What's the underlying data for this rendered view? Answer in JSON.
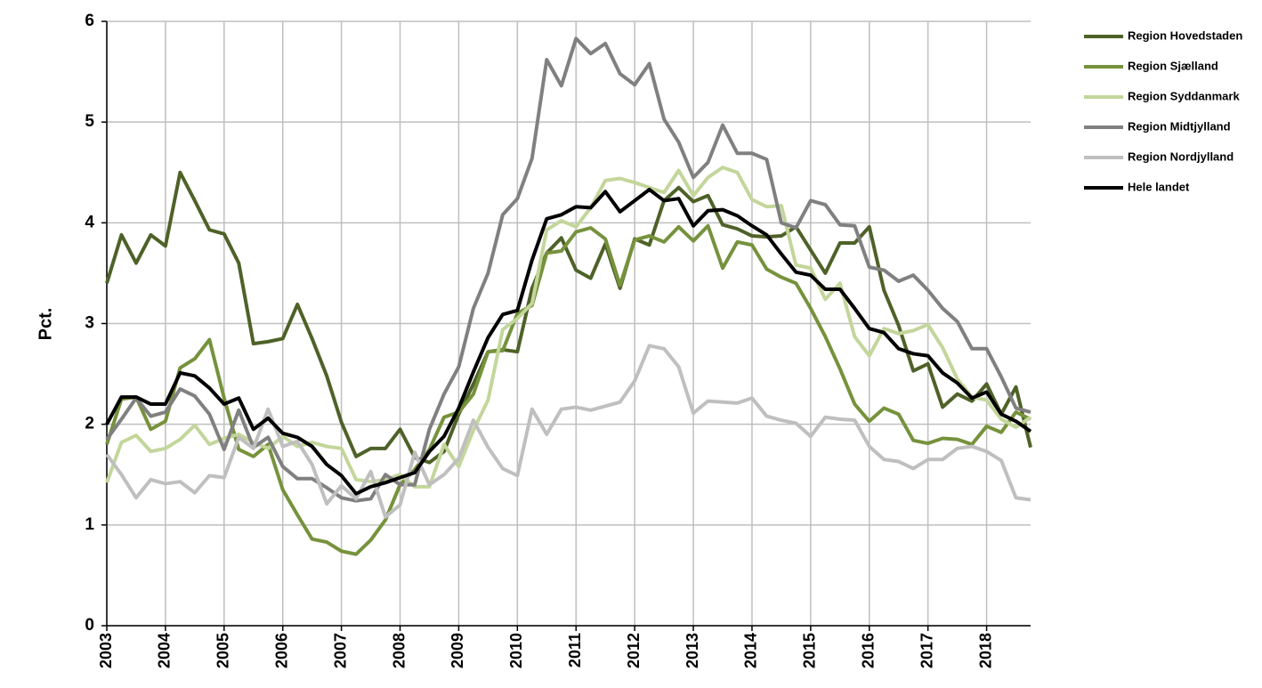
{
  "chart_data": {
    "type": "line",
    "ylabel": "Pct.",
    "x": [
      2003,
      2003.25,
      2003.5,
      2003.75,
      2004,
      2004.25,
      2004.5,
      2004.75,
      2005,
      2005.25,
      2005.5,
      2005.75,
      2006,
      2006.25,
      2006.5,
      2006.75,
      2007,
      2007.25,
      2007.5,
      2007.75,
      2008,
      2008.25,
      2008.5,
      2008.75,
      2009,
      2009.25,
      2009.5,
      2009.75,
      2010,
      2010.25,
      2010.5,
      2010.75,
      2011,
      2011.25,
      2011.5,
      2011.75,
      2012,
      2012.25,
      2012.5,
      2012.75,
      2013,
      2013.25,
      2013.5,
      2013.75,
      2014,
      2014.25,
      2014.5,
      2014.75,
      2015,
      2015.25,
      2015.5,
      2015.75,
      2016,
      2016.25,
      2016.5,
      2016.75,
      2017,
      2017.25,
      2017.5,
      2017.75,
      2018,
      2018.25,
      2018.5,
      2018.75
    ],
    "xlim": [
      2003,
      2018.75
    ],
    "xticks": [
      2003,
      2004,
      2005,
      2006,
      2007,
      2008,
      2009,
      2010,
      2011,
      2012,
      2013,
      2014,
      2015,
      2016,
      2017,
      2018
    ],
    "ylim": [
      0,
      6
    ],
    "yticks": [
      0,
      1,
      2,
      3,
      4,
      5,
      6
    ],
    "grid": true,
    "legend": "right",
    "series": [
      {
        "name": "Region Hovedstaden",
        "color": "#4e6228",
        "values": [
          3.4,
          3.88,
          3.6,
          3.88,
          3.77,
          4.5,
          4.22,
          3.93,
          3.89,
          3.6,
          2.8,
          2.82,
          2.85,
          3.19,
          2.85,
          2.48,
          2.02,
          1.68,
          1.76,
          1.76,
          1.95,
          1.67,
          1.62,
          1.73,
          2.1,
          2.4,
          2.72,
          2.74,
          2.72,
          3.35,
          3.7,
          3.85,
          3.53,
          3.45,
          3.79,
          3.35,
          3.84,
          3.78,
          4.22,
          4.35,
          4.21,
          4.27,
          3.98,
          3.94,
          3.87,
          3.86,
          3.87,
          3.96,
          3.73,
          3.5,
          3.8,
          3.8,
          3.96,
          3.33,
          2.98,
          2.53,
          2.6,
          2.17,
          2.3,
          2.23,
          2.4,
          2.1,
          2.37,
          1.77
        ]
      },
      {
        "name": "Region Sjælland",
        "color": "#76923c",
        "values": [
          1.8,
          2.25,
          2.27,
          1.95,
          2.03,
          2.56,
          2.65,
          2.84,
          2.26,
          1.75,
          1.68,
          1.8,
          1.35,
          1.1,
          0.86,
          0.83,
          0.74,
          0.71,
          0.85,
          1.05,
          1.4,
          1.55,
          1.75,
          2.07,
          2.12,
          2.3,
          2.72,
          2.73,
          3.1,
          3.18,
          3.7,
          3.72,
          3.91,
          3.95,
          3.84,
          3.38,
          3.83,
          3.87,
          3.81,
          3.96,
          3.82,
          3.97,
          3.55,
          3.81,
          3.78,
          3.54,
          3.46,
          3.4,
          3.15,
          2.87,
          2.55,
          2.2,
          2.03,
          2.16,
          2.1,
          1.84,
          1.81,
          1.86,
          1.85,
          1.8,
          1.98,
          1.92,
          2.12,
          2.05
        ]
      },
      {
        "name": "Region Syddanmark",
        "color": "#c3d69b",
        "values": [
          1.42,
          1.82,
          1.89,
          1.73,
          1.76,
          1.85,
          1.99,
          1.8,
          1.86,
          1.9,
          1.82,
          1.76,
          1.88,
          1.78,
          1.82,
          1.78,
          1.76,
          1.45,
          1.43,
          1.45,
          1.5,
          1.38,
          1.38,
          1.8,
          1.58,
          1.94,
          2.24,
          2.94,
          3.05,
          3.2,
          3.93,
          4.02,
          3.96,
          4.15,
          4.42,
          4.44,
          4.4,
          4.35,
          4.3,
          4.52,
          4.27,
          4.45,
          4.55,
          4.5,
          4.23,
          4.16,
          4.17,
          3.58,
          3.55,
          3.24,
          3.4,
          2.87,
          2.68,
          2.95,
          2.9,
          2.93,
          2.99,
          2.76,
          2.45,
          2.27,
          2.24,
          2.05,
          1.97,
          2.07
        ]
      },
      {
        "name": "Region Midtjylland",
        "color": "#808080",
        "values": [
          1.85,
          2.05,
          2.26,
          2.08,
          2.12,
          2.35,
          2.28,
          2.1,
          1.75,
          2.14,
          1.77,
          1.87,
          1.58,
          1.46,
          1.46,
          1.37,
          1.27,
          1.24,
          1.26,
          1.5,
          1.4,
          1.4,
          1.95,
          2.3,
          2.57,
          3.15,
          3.5,
          4.08,
          4.24,
          4.64,
          5.62,
          5.36,
          5.83,
          5.68,
          5.78,
          5.48,
          5.37,
          5.58,
          5.03,
          4.8,
          4.45,
          4.6,
          4.97,
          4.69,
          4.69,
          4.63,
          4.0,
          3.95,
          4.22,
          4.18,
          3.98,
          3.97,
          3.56,
          3.53,
          3.42,
          3.48,
          3.33,
          3.15,
          3.02,
          2.75,
          2.75,
          2.47,
          2.16,
          2.12
        ]
      },
      {
        "name": "Region Nordjylland",
        "color": "#bfbfbf",
        "values": [
          1.7,
          1.5,
          1.27,
          1.45,
          1.41,
          1.43,
          1.32,
          1.49,
          1.47,
          1.87,
          1.76,
          2.15,
          1.78,
          1.83,
          1.6,
          1.21,
          1.39,
          1.26,
          1.53,
          1.08,
          1.2,
          1.72,
          1.4,
          1.5,
          1.66,
          2.04,
          1.77,
          1.56,
          1.49,
          2.15,
          1.9,
          2.15,
          2.17,
          2.14,
          2.18,
          2.22,
          2.43,
          2.78,
          2.75,
          2.57,
          2.11,
          2.23,
          2.22,
          2.21,
          2.26,
          2.08,
          2.04,
          2.01,
          1.88,
          2.07,
          2.05,
          2.04,
          1.78,
          1.65,
          1.63,
          1.56,
          1.65,
          1.65,
          1.76,
          1.78,
          1.73,
          1.64,
          1.27,
          1.25
        ]
      },
      {
        "name": "Hele landet",
        "color": "#000000",
        "values": [
          2.0,
          2.27,
          2.27,
          2.2,
          2.2,
          2.51,
          2.48,
          2.36,
          2.2,
          2.26,
          1.95,
          2.06,
          1.91,
          1.87,
          1.78,
          1.6,
          1.49,
          1.31,
          1.38,
          1.42,
          1.47,
          1.52,
          1.73,
          1.88,
          2.16,
          2.52,
          2.86,
          3.09,
          3.13,
          3.63,
          4.04,
          4.08,
          4.16,
          4.15,
          4.31,
          4.11,
          4.22,
          4.33,
          4.22,
          4.24,
          3.97,
          4.12,
          4.13,
          4.07,
          3.97,
          3.88,
          3.69,
          3.51,
          3.48,
          3.34,
          3.34,
          3.15,
          2.95,
          2.91,
          2.75,
          2.7,
          2.68,
          2.51,
          2.41,
          2.26,
          2.32,
          2.1,
          2.03,
          1.93
        ]
      }
    ]
  }
}
